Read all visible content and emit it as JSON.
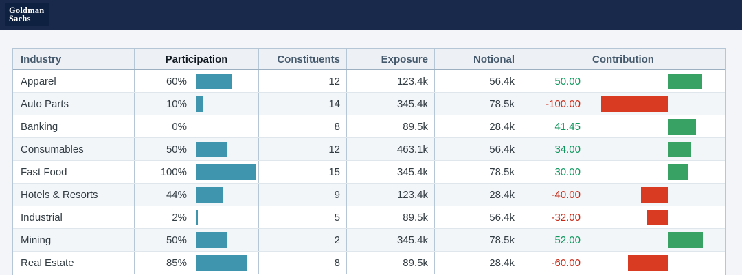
{
  "brand": {
    "name": "Goldman Sachs",
    "line1": "Goldman",
    "line2": "Sachs"
  },
  "colors": {
    "navbar": "#18294c",
    "participation_bar": "#3e95ad",
    "positive_bar": "#38a264",
    "positive_text": "#11965e",
    "negative_bar": "#d83a22",
    "negative_text": "#c72917"
  },
  "table": {
    "columns": [
      {
        "key": "industry",
        "label": "Industry"
      },
      {
        "key": "participation",
        "label": "Participation"
      },
      {
        "key": "constituents",
        "label": "Constituents"
      },
      {
        "key": "exposure",
        "label": "Exposure"
      },
      {
        "key": "notional",
        "label": "Notional"
      },
      {
        "key": "contribution",
        "label": "Contribution"
      }
    ],
    "rows": [
      {
        "industry": "Apparel",
        "participation_pct": 60,
        "participation_label": "60%",
        "constituents": "12",
        "exposure": "123.4k",
        "notional": "56.4k",
        "contribution": 50.0,
        "contribution_label": "50.00"
      },
      {
        "industry": "Auto Parts",
        "participation_pct": 10,
        "participation_label": "10%",
        "constituents": "14",
        "exposure": "345.4k",
        "notional": "78.5k",
        "contribution": -100.0,
        "contribution_label": "-100.00"
      },
      {
        "industry": "Banking",
        "participation_pct": 0,
        "participation_label": "0%",
        "constituents": "8",
        "exposure": "89.5k",
        "notional": "28.4k",
        "contribution": 41.45,
        "contribution_label": "41.45"
      },
      {
        "industry": "Consumables",
        "participation_pct": 50,
        "participation_label": "50%",
        "constituents": "12",
        "exposure": "463.1k",
        "notional": "56.4k",
        "contribution": 34.0,
        "contribution_label": "34.00"
      },
      {
        "industry": "Fast Food",
        "participation_pct": 100,
        "participation_label": "100%",
        "constituents": "15",
        "exposure": "345.4k",
        "notional": "78.5k",
        "contribution": 30.0,
        "contribution_label": "30.00"
      },
      {
        "industry": "Hotels & Resorts",
        "participation_pct": 44,
        "participation_label": "44%",
        "constituents": "9",
        "exposure": "123.4k",
        "notional": "28.4k",
        "contribution": -40.0,
        "contribution_label": "-40.00"
      },
      {
        "industry": "Industrial",
        "participation_pct": 2,
        "participation_label": "2%",
        "constituents": "5",
        "exposure": "89.5k",
        "notional": "56.4k",
        "contribution": -32.0,
        "contribution_label": "-32.00"
      },
      {
        "industry": "Mining",
        "participation_pct": 50,
        "participation_label": "50%",
        "constituents": "2",
        "exposure": "345.4k",
        "notional": "78.5k",
        "contribution": 52.0,
        "contribution_label": "52.00"
      },
      {
        "industry": "Real Estate",
        "participation_pct": 85,
        "participation_label": "85%",
        "constituents": "8",
        "exposure": "89.5k",
        "notional": "28.4k",
        "contribution": -60.0,
        "contribution_label": "-60.00"
      }
    ]
  }
}
